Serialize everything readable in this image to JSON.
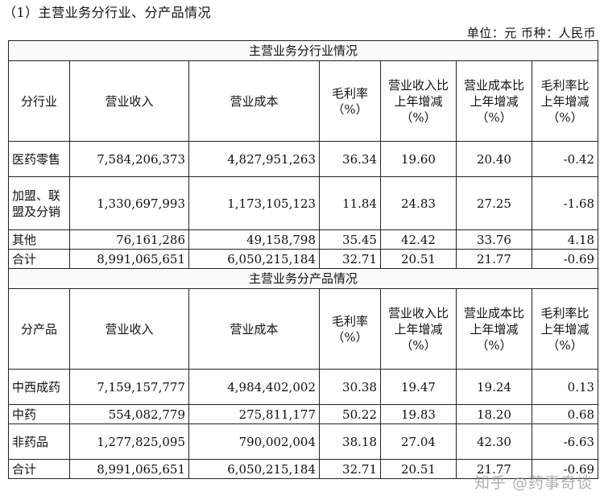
{
  "heading": "（1）主营业务分行业、分产品情况",
  "unit": "单位：元  币种：人民币",
  "industry_section": {
    "title": "主营业务分行业情况",
    "headers": [
      "分行业",
      "营业收入",
      "营业成本",
      "毛利率（%）",
      "营业收入比上年增减（%）",
      "营业成本比上年增减（%）",
      "毛利率比上年增减（%）"
    ],
    "rows": [
      [
        "医药零售",
        "7,584,206,373",
        "4,827,951,263",
        "36.34",
        "19.60",
        "20.40",
        "-0.42"
      ],
      [
        "加盟、联盟及分销",
        "1,330,697,993",
        "1,173,105,123",
        "11.84",
        "24.83",
        "27.25",
        "-1.68"
      ],
      [
        "其他",
        "76,161,286",
        "49,158,798",
        "35.45",
        "42.42",
        "33.76",
        "4.18"
      ],
      [
        "合计",
        "8,991,065,651",
        "6,050,215,184",
        "32.71",
        "20.51",
        "21.77",
        "-0.69"
      ]
    ]
  },
  "product_section": {
    "title": "主营业务分产品情况",
    "headers": [
      "分产品",
      "营业收入",
      "营业成本",
      "毛利率（%）",
      "营业收入比上年增减（%）",
      "营业成本比上年增减（%）",
      "毛利率比上年增减（%）"
    ],
    "rows": [
      [
        "中西成药",
        "7,159,157,777",
        "4,984,402,002",
        "30.38",
        "19.47",
        "19.24",
        "0.13"
      ],
      [
        "中药",
        "554,082,779",
        "275,811,177",
        "50.22",
        "19.83",
        "18.20",
        "0.68"
      ],
      [
        "非药品",
        "1,277,825,095",
        "790,002,004",
        "38.18",
        "27.04",
        "42.30",
        "-6.63"
      ],
      [
        "合计",
        "8,991,065,651",
        "6,050,215,184",
        "32.71",
        "20.51",
        "21.77",
        "-0.69"
      ]
    ]
  },
  "watermark": "知乎 @药事奇谈"
}
